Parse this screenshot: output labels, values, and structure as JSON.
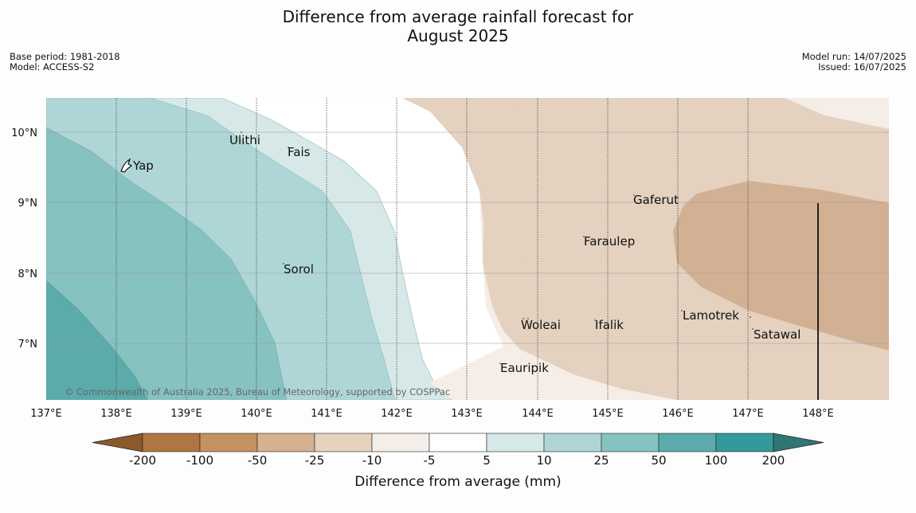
{
  "header": {
    "title_line1": "Difference from average rainfall forecast for",
    "title_line2": "August 2025",
    "base_period": "Base period: 1981-2018",
    "model": "Model: ACCESS-S2",
    "model_run": "Model run: 14/07/2025",
    "issued": "Issued: 16/07/2025"
  },
  "map": {
    "lon_labels": [
      "137°E",
      "138°E",
      "139°E",
      "140°E",
      "141°E",
      "142°E",
      "143°E",
      "144°E",
      "145°E",
      "146°E",
      "147°E",
      "148°E"
    ],
    "lat_labels": [
      "10°N",
      "9°N",
      "8°N",
      "7°N"
    ],
    "places": [
      {
        "name": "Yap"
      },
      {
        "name": "Ulithi"
      },
      {
        "name": "Fais"
      },
      {
        "name": "Sorol"
      },
      {
        "name": "Gaferut"
      },
      {
        "name": "Faraulep"
      },
      {
        "name": "Woleai"
      },
      {
        "name": "Ifalik"
      },
      {
        "name": "Lamotrek"
      },
      {
        "name": "Satawal"
      },
      {
        "name": "Eauripik"
      }
    ],
    "credit": "© Commonwealth of Australia 2025, Bureau of Meteorology, supported by COSPPac",
    "colors": {
      "pos_5_10": "#d6e9e8",
      "pos_10_25": "#afd6d6",
      "pos_25_50": "#86c2c0",
      "pos_50_100": "#5babab",
      "neg_5_10": "#f5ede7",
      "neg_10_25": "#e4d1bf",
      "neg_25_50": "#d2b093"
    }
  },
  "colorbar": {
    "ticks": [
      "-200",
      "-100",
      "-50",
      "-25",
      "-10",
      "-5",
      "5",
      "10",
      "25",
      "50",
      "100",
      "200"
    ],
    "colors": [
      "#8b5a2b",
      "#b07540",
      "#c4925f",
      "#d5b190",
      "#e6d2bf",
      "#f5ede7",
      "#ffffff",
      "#d6e9e8",
      "#afd6d6",
      "#86c2c0",
      "#5babab",
      "#34999a",
      "#2f7775"
    ],
    "label": "Difference from average (mm)"
  }
}
